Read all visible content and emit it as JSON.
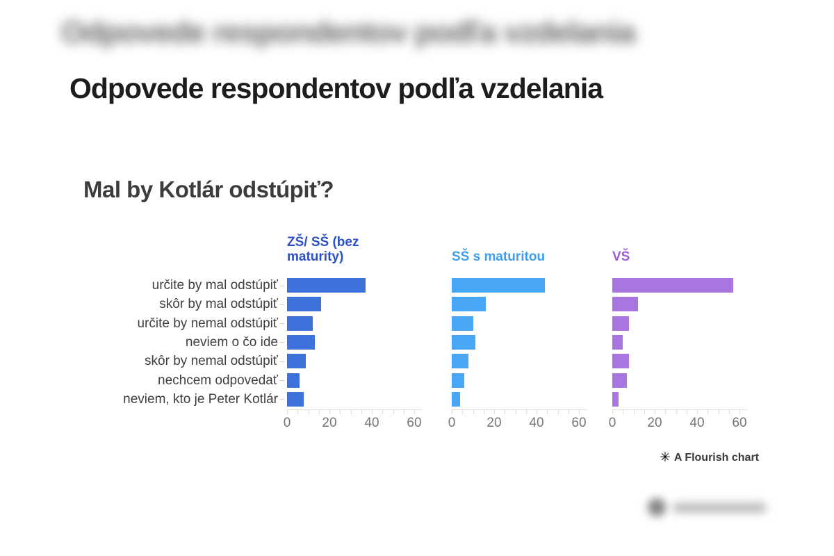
{
  "page": {
    "background": "#ffffff"
  },
  "header": {
    "blurred_title": "Odpovede respondentov podľa vzdelania",
    "title": "Odpovede respondentov podľa vzdelania"
  },
  "chart_data": {
    "type": "bar",
    "orientation": "horizontal",
    "layout": "small-multiples (3 panels sharing category axis)",
    "title": "Mal by Kotlár odstúpiť?",
    "categories": [
      "určite by mal odstúpiť",
      "skôr by mal odstúpiť",
      "určite by nemal odstúpiť",
      "neviem o čo ide",
      "skôr by nemal odstúpiť",
      "nechcem odpovedať",
      "neviem, kto je Peter Kotlár"
    ],
    "series": [
      {
        "name": "ZŠ/ SŠ (bez maturity)",
        "color": "#3d72da",
        "label_color": "#2b4fc4",
        "values": [
          37,
          16,
          12,
          13,
          9,
          6,
          8
        ]
      },
      {
        "name": "SŠ s maturitou",
        "color": "#4aa7f7",
        "label_color": "#3d9ef2",
        "values": [
          44,
          16,
          10,
          11,
          8,
          6,
          4
        ]
      },
      {
        "name": "VŠ",
        "color": "#a875e1",
        "label_color": "#9b5ed8",
        "values": [
          57,
          12,
          8,
          5,
          8,
          7,
          3
        ]
      }
    ],
    "x_ticks": [
      0,
      20,
      40,
      60
    ],
    "xlim": [
      0,
      64
    ],
    "minor_tick_step": 5,
    "grid": false,
    "legend_position": "panel-headers"
  },
  "attribution": {
    "icon": "✳",
    "label": "A Flourish chart"
  }
}
